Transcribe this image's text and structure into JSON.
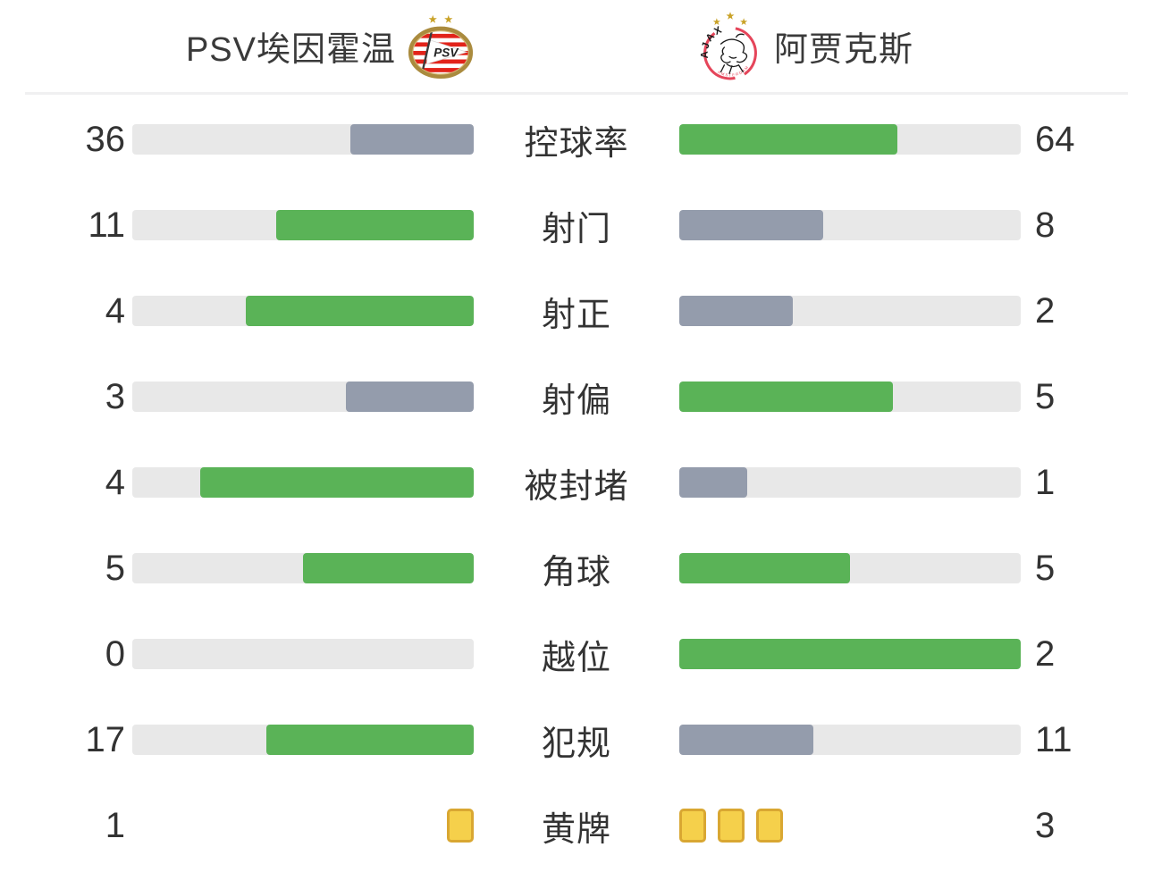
{
  "header": {
    "home": {
      "name": "PSV埃因霍温",
      "logo": "psv-crest"
    },
    "away": {
      "name": "阿贾克斯",
      "logo": "ajax-crest"
    }
  },
  "colors": {
    "green": "#5ab357",
    "slate": "#949cac",
    "track": "#e8e8e8",
    "card_fill": "#f5d04b",
    "card_border": "#d9a732",
    "divider": "#f0f0f1",
    "text": "#333333"
  },
  "rows": [
    {
      "label": "控球率",
      "type": "bar",
      "home": {
        "value": "36",
        "pct": 36,
        "color": "slate"
      },
      "away": {
        "value": "64",
        "pct": 64,
        "color": "green"
      }
    },
    {
      "label": "射门",
      "type": "bar",
      "home": {
        "value": "11",
        "pct": 57.9,
        "color": "green"
      },
      "away": {
        "value": "8",
        "pct": 42.1,
        "color": "slate"
      }
    },
    {
      "label": "射正",
      "type": "bar",
      "home": {
        "value": "4",
        "pct": 66.7,
        "color": "green"
      },
      "away": {
        "value": "2",
        "pct": 33.3,
        "color": "slate"
      }
    },
    {
      "label": "射偏",
      "type": "bar",
      "home": {
        "value": "3",
        "pct": 37.5,
        "color": "slate"
      },
      "away": {
        "value": "5",
        "pct": 62.5,
        "color": "green"
      }
    },
    {
      "label": "被封堵",
      "type": "bar",
      "home": {
        "value": "4",
        "pct": 80,
        "color": "green"
      },
      "away": {
        "value": "1",
        "pct": 20,
        "color": "slate"
      }
    },
    {
      "label": "角球",
      "type": "bar",
      "home": {
        "value": "5",
        "pct": 50,
        "color": "green"
      },
      "away": {
        "value": "5",
        "pct": 50,
        "color": "green"
      }
    },
    {
      "label": "越位",
      "type": "bar",
      "home": {
        "value": "0",
        "pct": 0,
        "color": "green"
      },
      "away": {
        "value": "2",
        "pct": 100,
        "color": "green"
      }
    },
    {
      "label": "犯规",
      "type": "bar",
      "home": {
        "value": "17",
        "pct": 60.7,
        "color": "green"
      },
      "away": {
        "value": "11",
        "pct": 39.3,
        "color": "slate"
      }
    },
    {
      "label": "黄牌",
      "type": "cards",
      "home": {
        "value": "1",
        "cards": 1
      },
      "away": {
        "value": "3",
        "cards": 3
      }
    }
  ],
  "chart_data": {
    "type": "bar",
    "orientation": "horizontal-opposed",
    "title": "",
    "categories": [
      "控球率",
      "射门",
      "射正",
      "射偏",
      "被封堵",
      "角球",
      "越位",
      "犯规",
      "黄牌"
    ],
    "series": [
      {
        "name": "PSV埃因霍温",
        "values": [
          36,
          11,
          4,
          3,
          4,
          5,
          0,
          17,
          1
        ]
      },
      {
        "name": "阿贾克斯",
        "values": [
          64,
          8,
          2,
          5,
          1,
          5,
          2,
          11,
          3
        ]
      }
    ],
    "legend_position": "top",
    "grid": false,
    "bar_fraction_rule": "bar length = value / (home value + away value) of each row",
    "color_rule": "higher value green #5ab357, lower value slate #949cac, ties green; 黄牌 row drawn as yellow card icons"
  }
}
